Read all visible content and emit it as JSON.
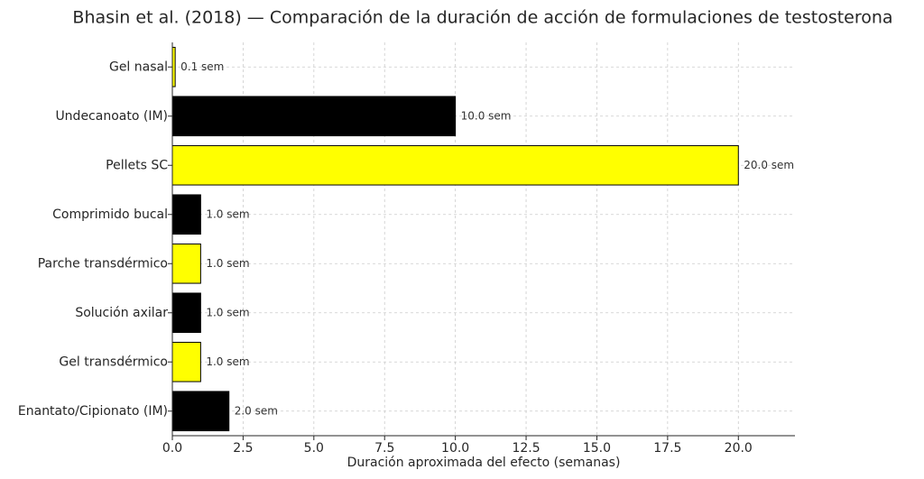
{
  "chart_data": {
    "type": "barh",
    "title": "Bhasin et al. (2018) — Comparación de la duración de acción de formulaciones de testosterona",
    "x_label": "Duración aproximada del efecto (semanas)",
    "categories": [
      "Gel nasal",
      "Undecanoato (IM)",
      "Pellets SC",
      "Comprimido bucal",
      "Parche transdérmico",
      "Solución axilar",
      "Gel transdérmico",
      "Enantato/Cipionato (IM)"
    ],
    "values": [
      0.1,
      10,
      20,
      1,
      1,
      1,
      1,
      2
    ],
    "value_labels": [
      "0.1 sem",
      "10.0 sem",
      "20.0 sem",
      "1.0 sem",
      "1.0 sem",
      "1.0 sem",
      "1.0 sem",
      "2.0 sem"
    ],
    "colors": [
      "#ffff00",
      "#000000",
      "#ffff00",
      "#000000",
      "#ffff00",
      "#000000",
      "#ffff00",
      "#000000"
    ],
    "xlim": [
      0,
      22
    ],
    "xticks": [
      {
        "value": 0,
        "label": "0.0"
      },
      2.5,
      {
        "value": 5,
        "label": "5.0"
      },
      7.5,
      {
        "value": 10,
        "label": "10.0"
      },
      12.5,
      {
        "value": 15,
        "label": "15.0"
      },
      17.5,
      {
        "value": 20,
        "label": "20.0"
      }
    ],
    "grid": true
  }
}
